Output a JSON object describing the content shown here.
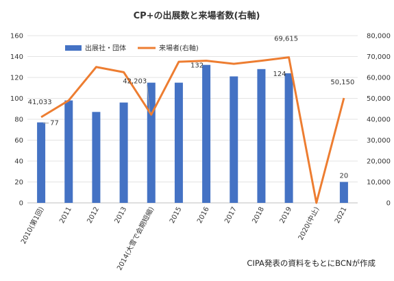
{
  "chart_data": {
    "type": "bar+line",
    "title": "CP+の出展数と来場者数(右軸)",
    "categories": [
      "2010(第1回)",
      "2011",
      "2012",
      "2013",
      "2014(大雪で会期短縮)",
      "2015",
      "2016",
      "2017",
      "2018",
      "2019",
      "2020(中止)",
      "2021"
    ],
    "series": [
      {
        "name": "出展社・団体",
        "type": "bar",
        "axis": "left",
        "color": "#4472C4",
        "values": [
          77,
          98,
          87,
          96,
          115,
          115,
          132,
          121,
          128,
          124,
          null,
          20
        ]
      },
      {
        "name": "来場者(右軸)",
        "type": "line",
        "axis": "right",
        "color": "#ED7D31",
        "values": [
          41033,
          49000,
          65000,
          62500,
          42203,
          67500,
          68000,
          66500,
          68000,
          69615,
          0,
          50150
        ]
      }
    ],
    "y_left": {
      "min": 0,
      "max": 160,
      "ticks": [
        "0",
        "20",
        "40",
        "60",
        "80",
        "100",
        "120",
        "140",
        "160"
      ]
    },
    "y_right": {
      "min": 0,
      "max": 80000,
      "ticks": [
        "0",
        "10,000",
        "20,000",
        "30,000",
        "40,000",
        "50,000",
        "60,000",
        "70,000",
        "80,000"
      ]
    },
    "data_labels": [
      {
        "series": 0,
        "index": 0,
        "text": "77"
      },
      {
        "series": 0,
        "index": 6,
        "text": "132"
      },
      {
        "series": 0,
        "index": 9,
        "text": "124"
      },
      {
        "series": 0,
        "index": 11,
        "text": "20"
      },
      {
        "series": 1,
        "index": 0,
        "text": "41,033"
      },
      {
        "series": 1,
        "index": 4,
        "text": "42,203"
      },
      {
        "series": 1,
        "index": 9,
        "text": "69,615"
      },
      {
        "series": 1,
        "index": 11,
        "text": "50,150"
      }
    ],
    "legend_position": "top-left",
    "grid": true,
    "source": "CIPA発表の資料をもとにBCNが作成"
  }
}
